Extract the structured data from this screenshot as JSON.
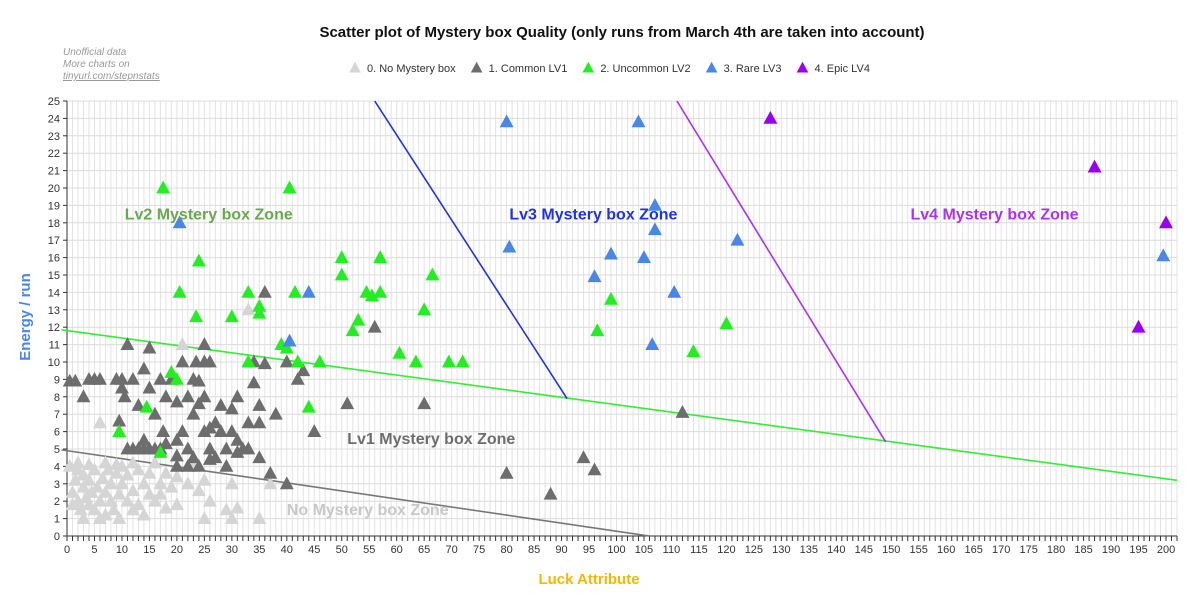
{
  "chart_data": {
    "type": "scatter",
    "title": "Scatter plot of Mystery box Quality (only runs from March 4th are taken into account)",
    "notes": [
      "Unofficial data",
      "More charts on",
      "tinyurl.com/stepnstats"
    ],
    "xlabel": "Luck Attribute",
    "ylabel": "Energy / run",
    "xlim": [
      0,
      202
    ],
    "ylim": [
      0,
      25
    ],
    "x_ticks": [
      0,
      5,
      10,
      15,
      20,
      25,
      30,
      35,
      40,
      45,
      50,
      55,
      60,
      65,
      70,
      75,
      80,
      85,
      90,
      95,
      100,
      105,
      110,
      115,
      120,
      125,
      130,
      135,
      140,
      145,
      150,
      155,
      160,
      165,
      170,
      175,
      180,
      185,
      190,
      195,
      200
    ],
    "y_ticks": [
      0,
      1,
      2,
      3,
      4,
      5,
      6,
      7,
      8,
      9,
      10,
      11,
      12,
      13,
      14,
      15,
      16,
      17,
      18,
      19,
      20,
      21,
      22,
      23,
      24,
      25
    ],
    "grid": true,
    "legend_position": "top",
    "xlabel_color": "#f5b800",
    "ylabel_color": "#4a86e8",
    "series": [
      {
        "name": "0. No Mystery box",
        "color": "#d5d5d5",
        "points": [
          [
            0.5,
            4
          ],
          [
            1,
            2.5
          ],
          [
            1,
            1.8
          ],
          [
            1.5,
            3.2
          ],
          [
            2,
            2
          ],
          [
            2,
            3.8
          ],
          [
            2.5,
            1.5
          ],
          [
            3,
            2.8
          ],
          [
            3,
            3.5
          ],
          [
            3.5,
            2.2
          ],
          [
            4,
            1.8
          ],
          [
            4,
            3.2
          ],
          [
            4.5,
            2.5
          ],
          [
            5,
            3.8
          ],
          [
            5,
            1.5
          ],
          [
            5.5,
            2.8
          ],
          [
            6,
            2
          ],
          [
            6,
            6.5
          ],
          [
            6.5,
            3.3
          ],
          [
            7,
            1.2
          ],
          [
            7,
            2.5
          ],
          [
            7.5,
            3.8
          ],
          [
            8,
            2
          ],
          [
            8,
            3
          ],
          [
            8.5,
            1.5
          ],
          [
            9,
            3.6
          ],
          [
            9.5,
            2.4
          ],
          [
            9.5,
            1
          ],
          [
            10,
            3
          ],
          [
            10,
            4
          ],
          [
            11,
            2
          ],
          [
            11,
            3.5
          ],
          [
            12,
            2.6
          ],
          [
            12,
            1.5
          ],
          [
            13,
            3.8
          ],
          [
            14,
            3
          ],
          [
            14,
            1.2
          ],
          [
            15,
            2.4
          ],
          [
            15,
            3.6
          ],
          [
            16,
            2
          ],
          [
            16,
            4.2
          ],
          [
            17,
            3
          ],
          [
            18,
            3.6
          ],
          [
            18,
            1.6
          ],
          [
            19,
            2.8
          ],
          [
            20,
            3.4
          ],
          [
            20,
            1.8
          ],
          [
            21,
            11
          ],
          [
            22,
            3
          ],
          [
            23,
            4
          ],
          [
            24,
            2.6
          ],
          [
            25,
            3.2
          ],
          [
            25,
            1
          ],
          [
            26,
            2
          ],
          [
            29,
            1.5
          ],
          [
            30,
            3
          ],
          [
            30,
            1
          ],
          [
            31,
            1.6
          ],
          [
            33,
            13
          ],
          [
            35,
            1
          ],
          [
            37,
            3
          ],
          [
            2,
            4.2
          ],
          [
            4,
            4.1
          ],
          [
            7,
            4.2
          ],
          [
            9,
            4.1
          ],
          [
            12,
            4.2
          ],
          [
            3,
            1
          ],
          [
            6,
            1
          ],
          [
            13,
            1.8
          ],
          [
            17,
            2.4
          ]
        ]
      },
      {
        "name": "1. Common LV1",
        "color": "#6d6d6d",
        "points": [
          [
            0.5,
            8.9
          ],
          [
            1.5,
            8.9
          ],
          [
            3,
            8
          ],
          [
            4,
            9
          ],
          [
            5,
            9
          ],
          [
            6,
            9
          ],
          [
            9,
            9
          ],
          [
            9.5,
            6.6
          ],
          [
            10,
            9
          ],
          [
            10,
            8.5
          ],
          [
            10.5,
            8
          ],
          [
            11,
            11
          ],
          [
            11,
            5
          ],
          [
            12,
            5
          ],
          [
            12,
            9
          ],
          [
            13,
            5
          ],
          [
            13,
            7.5
          ],
          [
            14,
            9.6
          ],
          [
            14,
            5
          ],
          [
            15,
            10.8
          ],
          [
            15,
            8.5
          ],
          [
            15,
            5
          ],
          [
            16,
            5
          ],
          [
            16,
            7
          ],
          [
            17,
            9
          ],
          [
            17,
            5
          ],
          [
            17.5,
            6
          ],
          [
            18,
            8
          ],
          [
            18,
            5.3
          ],
          [
            19,
            9
          ],
          [
            20,
            5.5
          ],
          [
            20,
            4
          ],
          [
            20,
            7.7
          ],
          [
            21,
            10
          ],
          [
            21,
            6
          ],
          [
            22,
            8
          ],
          [
            22,
            5
          ],
          [
            22,
            4
          ],
          [
            23,
            9
          ],
          [
            23,
            7
          ],
          [
            23,
            4.5
          ],
          [
            23.5,
            10
          ],
          [
            24,
            8.9
          ],
          [
            24,
            7.6
          ],
          [
            24,
            4
          ],
          [
            25,
            11
          ],
          [
            25,
            10
          ],
          [
            25,
            8
          ],
          [
            25,
            6
          ],
          [
            26,
            10
          ],
          [
            26,
            6.2
          ],
          [
            26,
            5
          ],
          [
            27,
            6.5
          ],
          [
            27,
            4.5
          ],
          [
            28,
            6
          ],
          [
            28,
            7.5
          ],
          [
            29,
            5
          ],
          [
            29,
            4
          ],
          [
            30,
            7.3
          ],
          [
            30,
            6
          ],
          [
            31,
            5.5
          ],
          [
            31,
            8
          ],
          [
            32,
            5
          ],
          [
            33,
            6.5
          ],
          [
            33,
            5
          ],
          [
            34,
            10
          ],
          [
            34,
            8.8
          ],
          [
            35,
            7.5
          ],
          [
            35,
            6.5
          ],
          [
            35,
            4.5
          ],
          [
            36,
            9.9
          ],
          [
            36,
            14
          ],
          [
            37,
            3.6
          ],
          [
            38,
            7
          ],
          [
            40,
            10
          ],
          [
            40,
            3
          ],
          [
            42,
            9
          ],
          [
            43,
            9.5
          ],
          [
            45,
            6
          ],
          [
            51,
            7.6
          ],
          [
            56,
            12
          ],
          [
            65,
            7.6
          ],
          [
            80,
            3.6
          ],
          [
            88,
            2.4
          ],
          [
            94,
            4.5
          ],
          [
            96,
            3.8
          ],
          [
            112,
            7.1
          ],
          [
            14,
            5.5
          ],
          [
            20,
            4.6
          ],
          [
            26,
            4.4
          ],
          [
            31,
            4.8
          ]
        ]
      },
      {
        "name": "2. Uncommon LV2",
        "color": "#22ee22",
        "points": [
          [
            9.5,
            6
          ],
          [
            14.5,
            7.4
          ],
          [
            17.5,
            20
          ],
          [
            17,
            4.8
          ],
          [
            19,
            9.4
          ],
          [
            20,
            9
          ],
          [
            20.5,
            14
          ],
          [
            23.5,
            12.6
          ],
          [
            24,
            15.8
          ],
          [
            30,
            12.6
          ],
          [
            33,
            14
          ],
          [
            33,
            10
          ],
          [
            35,
            13.2
          ],
          [
            35,
            12.8
          ],
          [
            39,
            11
          ],
          [
            40,
            10.8
          ],
          [
            40.5,
            20
          ],
          [
            41.5,
            14
          ],
          [
            42,
            10
          ],
          [
            44,
            7.4
          ],
          [
            46,
            10
          ],
          [
            50,
            16
          ],
          [
            50,
            15
          ],
          [
            52,
            11.8
          ],
          [
            53,
            12.4
          ],
          [
            54.5,
            14
          ],
          [
            55.5,
            13.8
          ],
          [
            57,
            14
          ],
          [
            57,
            16
          ],
          [
            60.5,
            10.5
          ],
          [
            63.5,
            10
          ],
          [
            65,
            13
          ],
          [
            66.5,
            15
          ],
          [
            69.5,
            10
          ],
          [
            72,
            10
          ],
          [
            96.5,
            11.8
          ],
          [
            99,
            13.6
          ],
          [
            114,
            10.6
          ],
          [
            120,
            12.2
          ]
        ]
      },
      {
        "name": "3. Rare LV3",
        "color": "#4a86e8",
        "points": [
          [
            20.5,
            18
          ],
          [
            40.5,
            11.2
          ],
          [
            44,
            14
          ],
          [
            80,
            23.8
          ],
          [
            80.5,
            16.6
          ],
          [
            96,
            14.9
          ],
          [
            99,
            16.2
          ],
          [
            104,
            23.8
          ],
          [
            105,
            16
          ],
          [
            106.5,
            11
          ],
          [
            107,
            19
          ],
          [
            107,
            17.6
          ],
          [
            110.5,
            14
          ],
          [
            122,
            17
          ],
          [
            199.5,
            16.1
          ]
        ]
      },
      {
        "name": "4. Epic LV4",
        "color": "#9900ee",
        "points": [
          [
            128,
            24
          ],
          [
            187,
            21.2
          ],
          [
            195,
            12
          ],
          [
            200,
            18
          ]
        ]
      }
    ],
    "boundary_lines": [
      {
        "color": "#33ee33",
        "from": [
          -1,
          11.85
        ],
        "to": [
          202,
          3.2
        ]
      },
      {
        "color": "#777777",
        "from": [
          -1,
          4.95
        ],
        "to": [
          106,
          0
        ]
      },
      {
        "color": "#2233dd",
        "from": [
          56,
          25
        ],
        "to": [
          91,
          7.9
        ]
      },
      {
        "color": "#aa33ee",
        "from": [
          111,
          25
        ],
        "to": [
          149,
          5.4
        ]
      }
    ],
    "annotations": [
      {
        "text": "Lv2 Mystery box Zone",
        "x": 10.5,
        "y": 18.2,
        "color": "#6aa84f"
      },
      {
        "text": "Lv3 Mystery box Zone",
        "x": 80.5,
        "y": 18.2,
        "color": "#2233dd"
      },
      {
        "text": "Lv4 Mystery box Zone",
        "x": 153.5,
        "y": 18.2,
        "color": "#aa33ee"
      },
      {
        "text": "Lv1 Mystery box Zone",
        "x": 51,
        "y": 5.3,
        "color": "#6d6d6d"
      },
      {
        "text": "No Mystery box Zone",
        "x": 40,
        "y": 1.2,
        "color": "#c8c8c8"
      }
    ]
  }
}
